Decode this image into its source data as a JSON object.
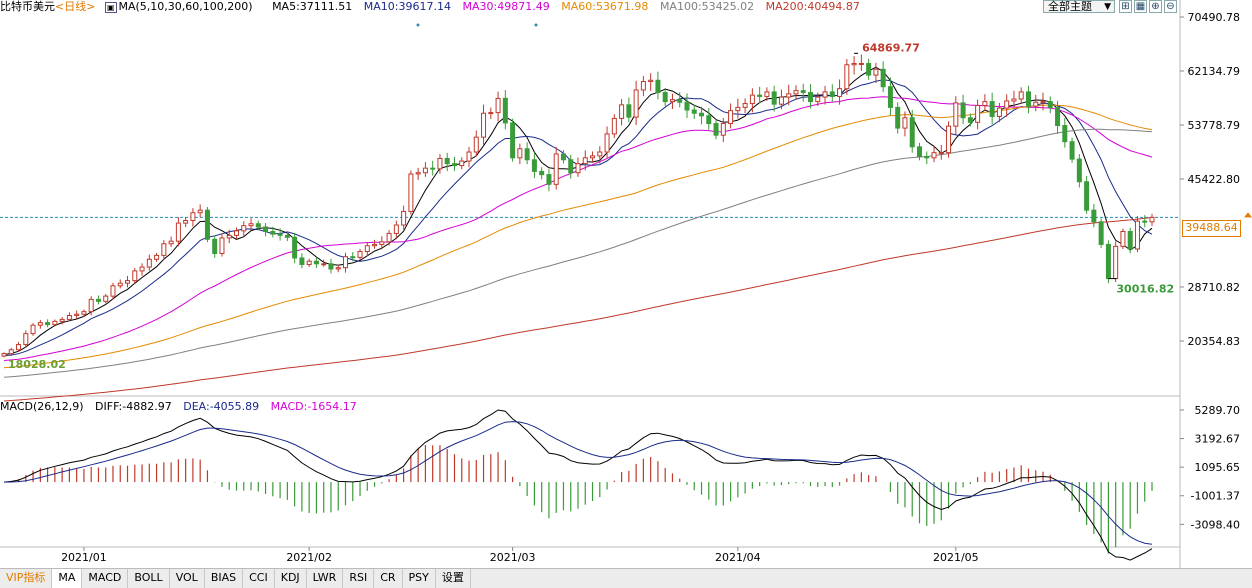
{
  "legend": {
    "title": "比特币美元",
    "period": "<日线>",
    "ma_label": "MA(5,10,30,60,100,200)",
    "ma5": "MA5:37111.51",
    "ma10": "MA10:39617.14",
    "ma30": "MA30:49871.49",
    "ma60": "MA60:53671.98",
    "ma100": "MA100:53425.02",
    "ma200": "MA200:40494.87"
  },
  "toolbar": {
    "theme_label": "全部主题",
    "theme_arrow": "▼"
  },
  "macd_legend": {
    "label": "MACD(26,12,9)",
    "diff": "DIFF:-4882.97",
    "dea": "DEA:-4055.89",
    "macd": "MACD:-1654.17"
  },
  "current_price": "39488.64",
  "tabs": [
    "VIP指标",
    "MA",
    "MACD",
    "BOLL",
    "VOL",
    "BIAS",
    "CCI",
    "KDJ",
    "LWR",
    "RSI",
    "CR",
    "PSY",
    "设置"
  ],
  "colors": {
    "up": "#c0392b",
    "down": "#3a9b3a",
    "ma5": "#000000",
    "ma10": "#1a2a8a",
    "ma30": "#d400d4",
    "ma60": "#e38a00",
    "ma100": "#808080",
    "ma200": "#c0392b",
    "accent": "#e07b00"
  },
  "chart_data": [
    {
      "type": "candlestick",
      "title": "比特币美元",
      "y_ticks": [
        "70490.78",
        "62134.79",
        "53778.79",
        "45422.80",
        "28710.82",
        "20354.83"
      ],
      "ylim": [
        12000,
        70490.78
      ],
      "x_ticks": [
        "2021/01",
        "2021/02",
        "2021/03",
        "2021/04",
        "2021/05"
      ],
      "annotations": [
        {
          "text": "64869.77",
          "kind": "high"
        },
        {
          "text": "30016.82",
          "kind": "low"
        },
        {
          "text": "18028.02",
          "kind": "start"
        }
      ],
      "current_price_line": 39488.64,
      "close_series": [
        18400,
        19000,
        19800,
        21500,
        22800,
        23200,
        22900,
        23400,
        23700,
        24300,
        24500,
        24900,
        26800,
        26500,
        27300,
        28900,
        29300,
        29700,
        31200,
        31800,
        33000,
        33600,
        35400,
        35800,
        38600,
        39000,
        40200,
        40600,
        36100,
        33900,
        36300,
        36700,
        37400,
        38200,
        38500,
        38000,
        37300,
        36900,
        36700,
        36400,
        33200,
        32200,
        32700,
        32300,
        32300,
        31500,
        31700,
        33400,
        33300,
        34200,
        35100,
        35300,
        35700,
        37000,
        38300,
        40400,
        46200,
        46400,
        47100,
        47000,
        48600,
        47800,
        47500,
        48200,
        49600,
        51900,
        55600,
        55700,
        57900,
        54100,
        48700,
        50100,
        48400,
        46600,
        46100,
        44600,
        49300,
        48400,
        46400,
        47800,
        48700,
        49000,
        49600,
        52400,
        54800,
        56900,
        55000,
        59200,
        60500,
        60700,
        58800,
        57400,
        57700,
        57300,
        56100,
        55600,
        55200,
        54000,
        52200,
        54000,
        56000,
        56500,
        57100,
        58400,
        58200,
        58900,
        57000,
        58100,
        58600,
        59100,
        58800,
        57400,
        58100,
        58900,
        58200,
        59400,
        63100,
        63300,
        63300,
        61500,
        62400,
        59700,
        56500,
        53300,
        54900,
        50400,
        48900,
        48700,
        49500,
        49500,
        53600,
        57200,
        54900,
        54200,
        56800,
        57400,
        55100,
        56400,
        57500,
        57800,
        58900,
        56700,
        57300,
        57400,
        56500,
        53700,
        51200,
        48500,
        45000,
        40600,
        38800,
        35300,
        30016,
        35000,
        37300,
        34600,
        38900,
        38800,
        39488
      ]
    },
    {
      "type": "line",
      "title": "MACD(26,12,9)",
      "y_ticks": [
        "5289.70",
        "3192.67",
        "1095.65",
        "-1001.37",
        "-3098.40"
      ],
      "ylim": [
        -5200,
        5800
      ],
      "series": [
        {
          "name": "DIFF",
          "color": "#000000"
        },
        {
          "name": "DEA",
          "color": "#1a2a8a"
        },
        {
          "name": "MACD",
          "color": "#c0392b"
        }
      ],
      "last_values": {
        "DIFF": -4882.97,
        "DEA": -4055.89,
        "MACD": -1654.17
      }
    }
  ]
}
